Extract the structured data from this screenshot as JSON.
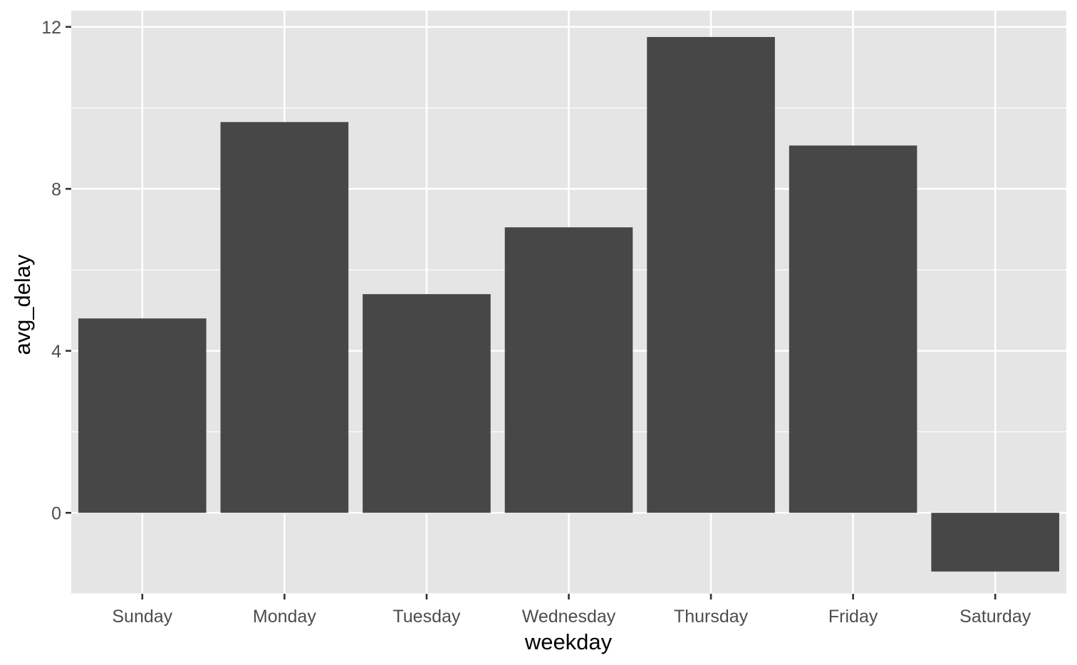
{
  "chart_data": {
    "type": "bar",
    "categories": [
      "Sunday",
      "Monday",
      "Tuesday",
      "Wednesday",
      "Thursday",
      "Friday",
      "Saturday"
    ],
    "values": [
      4.8,
      9.65,
      5.4,
      7.05,
      11.75,
      9.07,
      -1.45
    ],
    "xlabel": "weekday",
    "ylabel": "avg_delay",
    "yticks": [
      0,
      4,
      8,
      12
    ],
    "ylim": [
      -2.0,
      12.4
    ],
    "grid": true,
    "bar_color": "#474747",
    "panel_color": "#e5e5e5",
    "grid_color": "#ffffff"
  }
}
